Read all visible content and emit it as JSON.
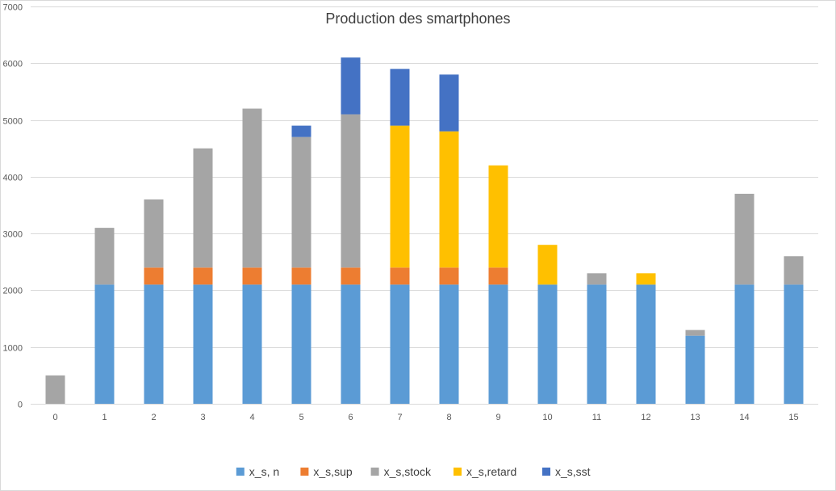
{
  "chart_data": {
    "type": "bar",
    "stacked": true,
    "title": "Production des smartphones",
    "xlabel": "",
    "ylabel": "",
    "ylim": [
      0,
      7000
    ],
    "yticks": [
      0,
      1000,
      2000,
      3000,
      4000,
      5000,
      6000,
      7000
    ],
    "ytick_labels": [
      "0",
      "1000",
      "2000",
      "3000",
      "4000",
      "5000",
      "6000",
      "7000"
    ],
    "categories": [
      "0",
      "1",
      "2",
      "3",
      "4",
      "5",
      "6",
      "7",
      "8",
      "9",
      "10",
      "11",
      "12",
      "13",
      "14",
      "15"
    ],
    "grid": true,
    "legend_position": "bottom",
    "series": [
      {
        "name": "x_s, n",
        "color": "#5B9BD5",
        "values": [
          0,
          2100,
          2100,
          2100,
          2100,
          2100,
          2100,
          2100,
          2100,
          2100,
          2100,
          2100,
          2100,
          1200,
          2100,
          2100
        ]
      },
      {
        "name": "x_s,sup",
        "color": "#ED7D31",
        "values": [
          0,
          0,
          300,
          300,
          300,
          300,
          300,
          300,
          300,
          300,
          0,
          0,
          0,
          0,
          0,
          0
        ]
      },
      {
        "name": "x_s,stock",
        "color": "#A5A5A5",
        "values": [
          500,
          1000,
          1200,
          2100,
          2800,
          2300,
          2700,
          0,
          0,
          0,
          0,
          200,
          0,
          100,
          1600,
          500
        ]
      },
      {
        "name": "x_s,retard",
        "color": "#FFC000",
        "values": [
          0,
          0,
          0,
          0,
          0,
          0,
          0,
          2500,
          2400,
          1800,
          700,
          0,
          200,
          0,
          0,
          0
        ]
      },
      {
        "name": "x_s,sst",
        "color": "#4472C4",
        "values": [
          0,
          0,
          0,
          0,
          0,
          200,
          1000,
          1000,
          1000,
          0,
          0,
          0,
          0,
          0,
          0,
          0
        ]
      }
    ]
  }
}
